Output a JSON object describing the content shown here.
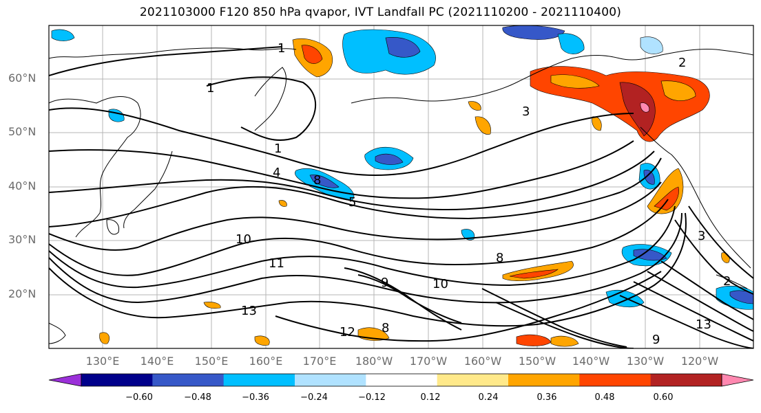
{
  "title": "2021103000 F120 850 hPa qvapor, IVT Landfall PC (2021110200 - 2021110400)",
  "lat_labels": [
    "60°N",
    "50°N",
    "40°N",
    "30°N",
    "20°N"
  ],
  "lon_labels": [
    "130°E",
    "140°E",
    "150°E",
    "160°E",
    "170°E",
    "180°W",
    "170°W",
    "160°W",
    "150°W",
    "140°W",
    "130°W",
    "120°W"
  ],
  "contour_labels": [
    "1",
    "1",
    "1",
    "4",
    "5",
    "8",
    "10",
    "11",
    "13",
    "10",
    "12",
    "3",
    "2",
    "3",
    "13",
    "9",
    "8",
    "9",
    "8",
    "2"
  ],
  "colorbar": {
    "tick_labels": [
      "−0.60",
      "−0.48",
      "−0.36",
      "−0.24",
      "−0.12",
      "0.12",
      "0.24",
      "0.36",
      "0.48",
      "0.60"
    ],
    "colors": [
      "#9b30d9",
      "#00008b",
      "#3658c8",
      "#00bfff",
      "#b0e2ff",
      "#ffffff",
      "#ffe98a",
      "#ffa500",
      "#ff4500",
      "#b22222",
      "#ff88b0"
    ]
  }
}
